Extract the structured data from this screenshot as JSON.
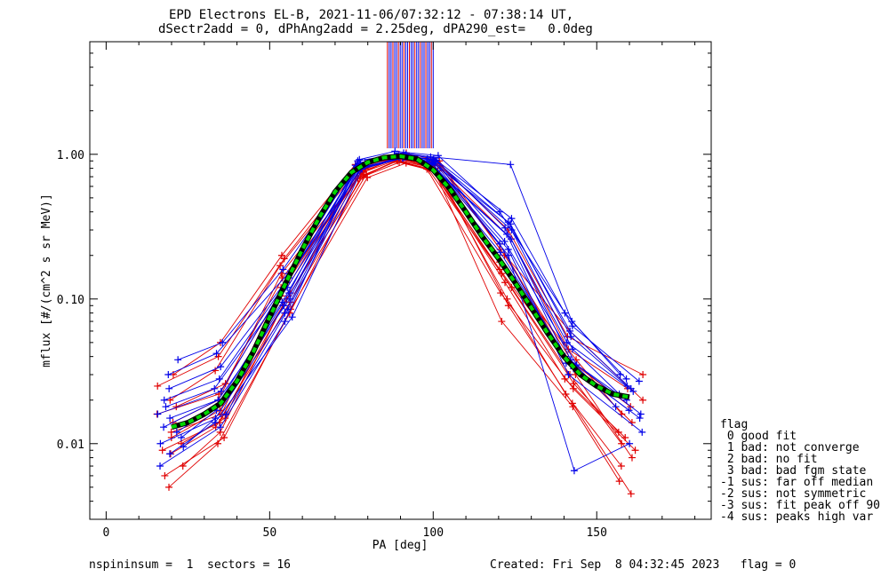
{
  "header": {
    "title_line1": "EPD Electrons EL-B, 2021-11-06/07:32:12 - 07:38:14 UT,",
    "title_line2": "dSectr2add = 0, dPhAng2add = 2.25deg, dPA290_est=   0.0deg"
  },
  "footer": {
    "left": "nspininsum =  1  sectors = 16",
    "right": "Created: Fri Sep  8 04:32:45 2023   flag = 0"
  },
  "flag_legend": {
    "title": "flag",
    "items": [
      " 0 good fit",
      " 1 bad: not converge",
      " 2 bad: no fit",
      " 3 bad: bad fgm state",
      "-1 sus: far off median",
      "-2 sus: not symmetric",
      "-3 sus: fit peak off 90",
      "-4 sus: peaks high var"
    ]
  },
  "colors": {
    "series_red": "#e00000",
    "series_blue": "#0000e8",
    "fit_green": "#00d800",
    "fit_dark": "#000000"
  },
  "chart_data": {
    "type": "line",
    "xlabel": "PA [deg]",
    "ylabel": "mflux [#/(cm^2 s sr MeV)]",
    "xlim": [
      -5,
      185
    ],
    "ylim": [
      0.003,
      6.0
    ],
    "yscale": "log",
    "xticks": [
      0,
      50,
      100,
      150
    ],
    "xtick_labels": [
      "0",
      "50",
      "100",
      "150"
    ],
    "yticks": [
      0.01,
      0.1,
      1.0
    ],
    "ytick_labels": [
      "0.01",
      "0.10",
      "1.00"
    ],
    "pa_bins": [
      20,
      35,
      55,
      78,
      90,
      100,
      122,
      142,
      160
    ],
    "median_fit": {
      "x": [
        20,
        25,
        30,
        35,
        40,
        45,
        50,
        55,
        60,
        65,
        70,
        75,
        80,
        85,
        90,
        95,
        100,
        105,
        110,
        115,
        120,
        125,
        130,
        135,
        140,
        145,
        150,
        155,
        160
      ],
      "y": [
        0.013,
        0.014,
        0.016,
        0.019,
        0.027,
        0.043,
        0.075,
        0.13,
        0.22,
        0.36,
        0.55,
        0.75,
        0.88,
        0.95,
        0.97,
        0.93,
        0.78,
        0.58,
        0.4,
        0.27,
        0.19,
        0.13,
        0.087,
        0.058,
        0.04,
        0.03,
        0.025,
        0.022,
        0.021
      ]
    },
    "spike": {
      "x_range": [
        86,
        100
      ],
      "y_range": [
        1.1,
        6.0
      ]
    },
    "series": [
      {
        "color": "red",
        "values": [
          0.012,
          0.016,
          0.12,
          0.68,
          0.92,
          0.84,
          0.24,
          0.03,
          0.008
        ]
      },
      {
        "color": "red",
        "values": [
          0.005,
          0.01,
          0.08,
          0.75,
          0.95,
          0.8,
          0.07,
          0.018,
          0.0055
        ]
      },
      {
        "color": "red",
        "values": [
          0.03,
          0.05,
          0.2,
          0.85,
          1.02,
          0.9,
          0.22,
          0.06,
          0.02
        ]
      },
      {
        "color": "red",
        "values": [
          0.009,
          0.014,
          0.1,
          0.72,
          0.9,
          0.78,
          0.12,
          0.03,
          0.01
        ]
      },
      {
        "color": "red",
        "values": [
          0.014,
          0.02,
          0.15,
          0.8,
          0.96,
          0.88,
          0.18,
          0.038,
          0.016
        ]
      },
      {
        "color": "red",
        "values": [
          0.007,
          0.012,
          0.09,
          0.7,
          0.88,
          0.76,
          0.1,
          0.022,
          0.007
        ]
      },
      {
        "color": "red",
        "values": [
          0.02,
          0.032,
          0.17,
          0.82,
          0.98,
          0.86,
          0.26,
          0.045,
          0.024
        ]
      },
      {
        "color": "red",
        "values": [
          0.011,
          0.017,
          0.11,
          0.74,
          0.93,
          0.82,
          0.15,
          0.026,
          0.012
        ]
      },
      {
        "color": "red",
        "values": [
          0.006,
          0.011,
          0.085,
          0.69,
          0.87,
          0.77,
          0.09,
          0.019,
          0.0045
        ]
      },
      {
        "color": "red",
        "values": [
          0.025,
          0.04,
          0.19,
          0.84,
          1.0,
          0.9,
          0.3,
          0.055,
          0.03
        ]
      },
      {
        "color": "red",
        "values": [
          0.016,
          0.022,
          0.13,
          0.78,
          0.94,
          0.84,
          0.2,
          0.034,
          0.014
        ]
      },
      {
        "color": "red",
        "values": [
          0.0085,
          0.013,
          0.095,
          0.73,
          0.91,
          0.79,
          0.11,
          0.024,
          0.009
        ]
      },
      {
        "color": "red",
        "values": [
          0.018,
          0.026,
          0.14,
          0.79,
          0.97,
          0.87,
          0.16,
          0.04,
          0.018
        ]
      },
      {
        "color": "red",
        "values": [
          0.01,
          0.015,
          0.105,
          0.76,
          0.92,
          0.81,
          0.13,
          0.028,
          0.011
        ]
      },
      {
        "color": "blue",
        "values": [
          0.013,
          0.02,
          0.1,
          0.82,
          0.97,
          0.9,
          0.28,
          0.04,
          0.02
        ]
      },
      {
        "color": "blue",
        "values": [
          0.007,
          0.013,
          0.07,
          0.78,
          0.95,
          0.86,
          0.22,
          0.03,
          0.012
        ]
      },
      {
        "color": "blue",
        "values": [
          0.038,
          0.05,
          0.16,
          0.92,
          1.05,
          0.98,
          0.4,
          0.08,
          0.03
        ]
      },
      {
        "color": "blue",
        "values": [
          0.018,
          0.024,
          0.12,
          0.86,
          0.99,
          0.92,
          0.33,
          0.055,
          0.025
        ]
      },
      {
        "color": "blue",
        "values": [
          0.01,
          0.016,
          0.085,
          0.8,
          0.96,
          0.88,
          0.25,
          0.035,
          0.016
        ]
      },
      {
        "color": "blue",
        "values": [
          0.024,
          0.034,
          0.14,
          0.88,
          1.0,
          0.94,
          0.36,
          0.065,
          0.027
        ]
      },
      {
        "color": "blue",
        "values": [
          0.0085,
          0.014,
          0.075,
          0.79,
          0.94,
          0.87,
          0.2,
          0.0065,
          0.01
        ]
      },
      {
        "color": "blue",
        "values": [
          0.015,
          0.021,
          0.11,
          0.84,
          0.98,
          0.91,
          0.3,
          0.045,
          0.022
        ]
      },
      {
        "color": "blue",
        "values": [
          0.012,
          0.018,
          0.095,
          0.83,
          0.97,
          0.89,
          0.26,
          0.038,
          0.018
        ]
      },
      {
        "color": "blue",
        "values": [
          0.03,
          0.042,
          0.15,
          0.9,
          1.02,
          0.96,
          0.85,
          0.07,
          0.028
        ]
      },
      {
        "color": "blue",
        "values": [
          0.011,
          0.017,
          0.09,
          0.81,
          0.96,
          0.88,
          0.24,
          0.036,
          0.017
        ]
      },
      {
        "color": "blue",
        "values": [
          0.02,
          0.028,
          0.13,
          0.87,
          0.99,
          0.93,
          0.34,
          0.06,
          0.024
        ]
      },
      {
        "color": "blue",
        "values": [
          0.0095,
          0.015,
          0.08,
          0.79,
          0.95,
          0.87,
          0.21,
          0.033,
          0.015
        ]
      },
      {
        "color": "blue",
        "values": [
          0.016,
          0.023,
          0.12,
          0.85,
          0.98,
          0.91,
          0.31,
          0.05,
          0.023
        ]
      }
    ]
  }
}
